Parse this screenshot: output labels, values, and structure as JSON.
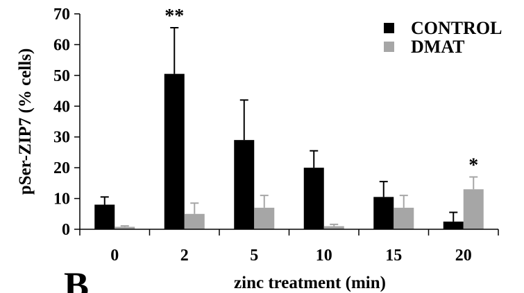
{
  "chart_data": {
    "type": "bar",
    "title": "",
    "xlabel": "zinc treatment (min)",
    "ylabel": "pSer-ZIP7 (% cells)",
    "categories": [
      "0",
      "2",
      "5",
      "10",
      "15",
      "20"
    ],
    "ylim": [
      0,
      70
    ],
    "yticks": [
      0,
      10,
      20,
      30,
      40,
      50,
      60,
      70
    ],
    "grid": false,
    "legend_position": "top-right",
    "series": [
      {
        "name": "CONTROL",
        "color": "#000000",
        "values": [
          8,
          50.5,
          29,
          20,
          10.5,
          2.5
        ],
        "errors": [
          2.5,
          15,
          13,
          5.5,
          5,
          3
        ]
      },
      {
        "name": "DMAT",
        "color": "#a6a6a6",
        "values": [
          0.8,
          5,
          7,
          1,
          7,
          13
        ],
        "errors": [
          0.3,
          3.5,
          4,
          0.6,
          4,
          4
        ]
      }
    ],
    "annotations": [
      {
        "text": "**",
        "category": "2",
        "series": "CONTROL"
      },
      {
        "text": "*",
        "category": "20",
        "series": "DMAT"
      }
    ]
  },
  "panel_label": "B"
}
